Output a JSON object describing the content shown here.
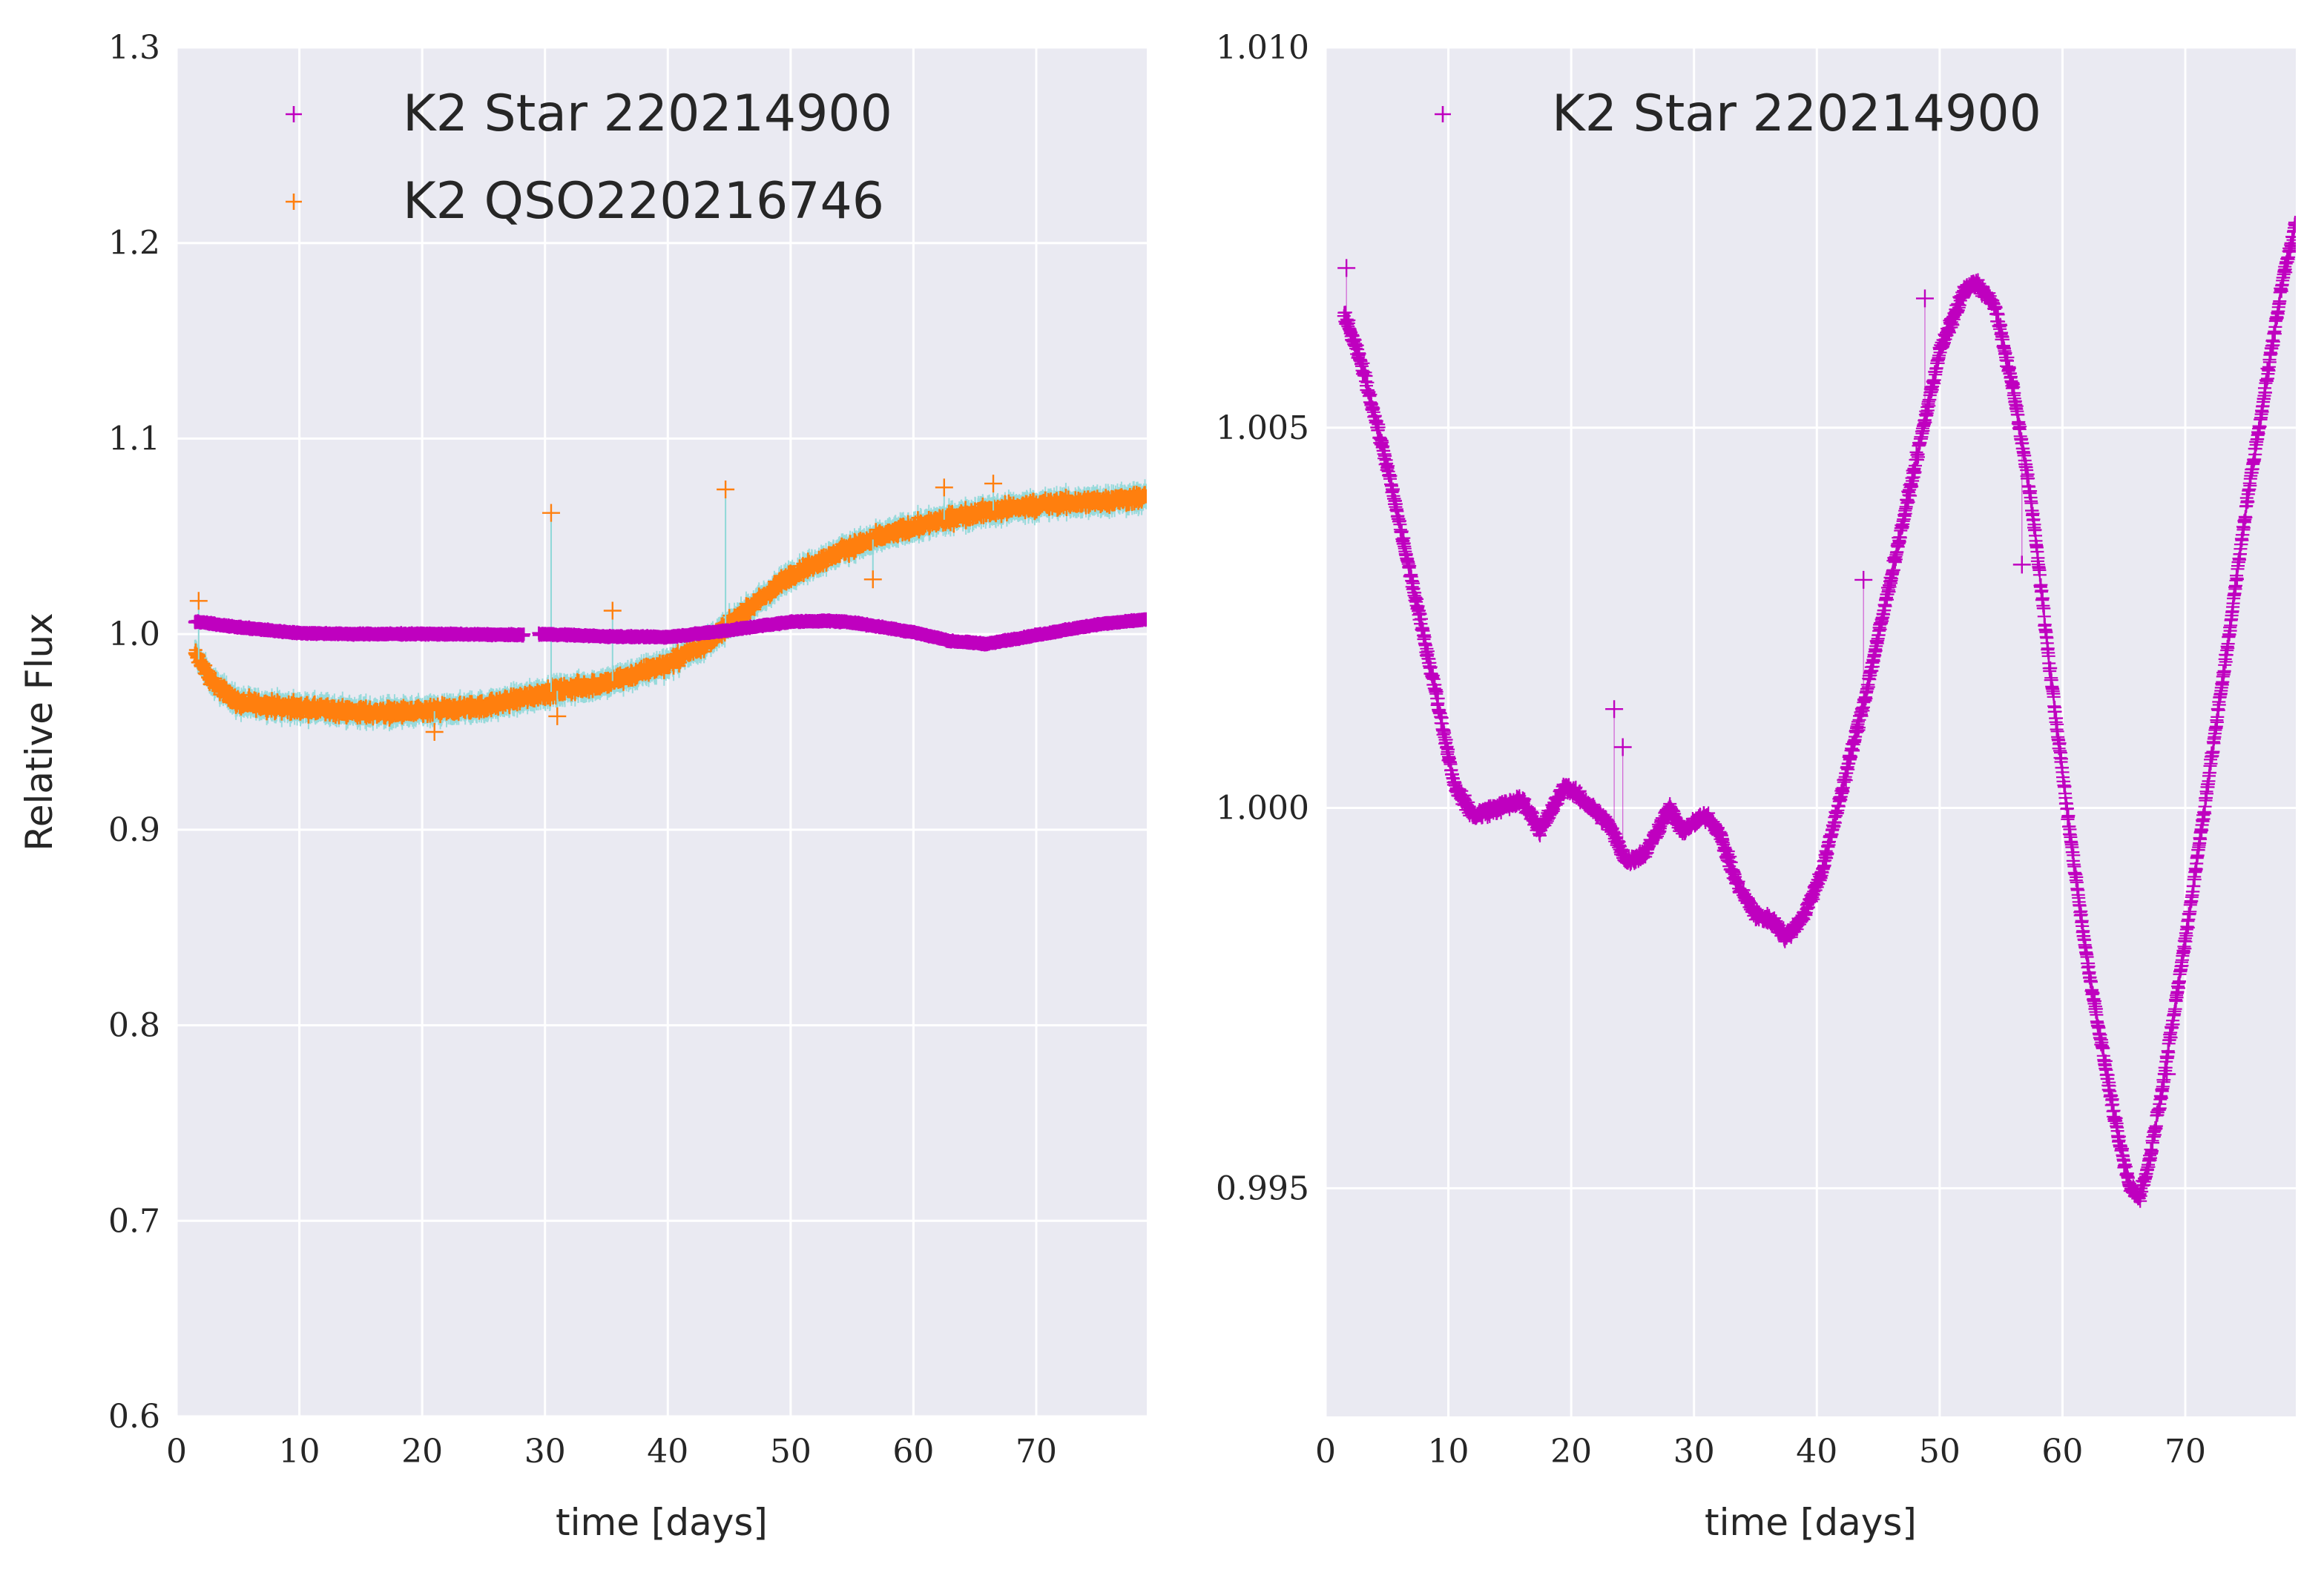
{
  "chart_data": [
    {
      "type": "scatter",
      "panel": "left",
      "xlabel": "time [days]",
      "ylabel": "Relative Flux",
      "xlim": [
        0,
        79
      ],
      "ylim": [
        0.6,
        1.3
      ],
      "xticks": [
        "0",
        "10",
        "20",
        "30",
        "40",
        "50",
        "60",
        "70"
      ],
      "yticks": [
        "0.6",
        "0.7",
        "0.8",
        "0.9",
        "1.0",
        "1.1",
        "1.2",
        "1.3"
      ],
      "grid": true,
      "legend_position": "top-left",
      "series": [
        {
          "name": "K2 Star 220214900",
          "color": "#bf00bf",
          "marker": "+",
          "gaps": [
            [
              28.3,
              29.5
            ]
          ],
          "x": [
            1.5,
            5,
            10,
            15,
            20,
            25,
            28,
            30,
            35,
            40,
            45,
            50,
            53,
            55,
            60,
            63,
            66,
            70,
            75,
            79
          ],
          "y": [
            1.0065,
            1.0035,
            1.0005,
            1.0,
            1.0001,
            0.9998,
            0.9996,
            1.0,
            0.9988,
            0.9985,
            1.002,
            1.0063,
            1.0068,
            1.006,
            1.001,
            0.9965,
            0.995,
            0.9995,
            1.005,
            1.0075
          ]
        },
        {
          "name": "K2 QSO220216746",
          "color": "#ff7f0e",
          "error_color": "#8fd8d8",
          "marker": "+",
          "x": [
            1.5,
            3,
            5,
            10,
            15,
            20,
            25,
            30,
            35,
            40,
            43,
            45,
            48,
            50,
            55,
            60,
            65,
            70,
            75,
            79
          ],
          "y": [
            0.99,
            0.975,
            0.965,
            0.962,
            0.96,
            0.96,
            0.963,
            0.97,
            0.975,
            0.985,
            0.995,
            1.005,
            1.02,
            1.03,
            1.045,
            1.055,
            1.062,
            1.066,
            1.068,
            1.07
          ],
          "outliers": [
            {
              "x": 1.8,
              "y": 1.017
            },
            {
              "x": 30.5,
              "y": 1.062
            },
            {
              "x": 35.5,
              "y": 1.012
            },
            {
              "x": 44.7,
              "y": 1.074
            },
            {
              "x": 62.5,
              "y": 1.075
            },
            {
              "x": 66.5,
              "y": 1.077
            },
            {
              "x": 21,
              "y": 0.95
            },
            {
              "x": 31,
              "y": 0.958
            },
            {
              "x": 56.7,
              "y": 1.028
            }
          ]
        }
      ]
    },
    {
      "type": "scatter",
      "panel": "right",
      "xlabel": "time [days]",
      "ylabel": "",
      "xlim": [
        0,
        79
      ],
      "ylim": [
        0.992,
        1.01
      ],
      "xticks": [
        "0",
        "10",
        "20",
        "30",
        "40",
        "50",
        "60",
        "70"
      ],
      "yticks": [
        "0.995",
        "1.000",
        "1.005",
        "1.010"
      ],
      "grid": true,
      "legend_position": "top-left",
      "series": [
        {
          "name": "K2 Star 220214900",
          "color": "#bf00bf",
          "marker": "+",
          "x": [
            1.5,
            3,
            5,
            7,
            9,
            10.5,
            12,
            14,
            16,
            17.5,
            19.5,
            21,
            23,
            24.5,
            26,
            28,
            29,
            31,
            32,
            33.5,
            35,
            36.5,
            37.5,
            39,
            40.5,
            42,
            44,
            46,
            48,
            50,
            52,
            53,
            54.5,
            56,
            57.5,
            59,
            60.5,
            62,
            63.5,
            64.5,
            65.5,
            66.3,
            67,
            68,
            69,
            70.5,
            72,
            73.5,
            75,
            76.5,
            78,
            79
          ],
          "y": [
            1.0065,
            1.0058,
            1.0045,
            1.003,
            1.0015,
            1.0003,
            0.9999,
            1.0,
            1.0001,
            0.9997,
            1.0003,
            1.0001,
            0.9998,
            0.9993,
            0.9994,
            1.0,
            0.9997,
            0.9999,
            0.9997,
            0.999,
            0.9986,
            0.9985,
            0.9983,
            0.9986,
            0.9992,
            1.0002,
            1.0015,
            1.003,
            1.0045,
            1.006,
            1.0068,
            1.0069,
            1.0066,
            1.0055,
            1.004,
            1.0018,
            0.9998,
            0.998,
            0.9966,
            0.9957,
            0.995,
            0.9949,
            0.9953,
            0.9962,
            0.9972,
            0.9988,
            1.0005,
            1.0022,
            1.004,
            1.0055,
            1.007,
            1.0077
          ],
          "outliers": [
            {
              "x": 1.7,
              "y": 1.0071
            },
            {
              "x": 23.5,
              "y": 1.0013
            },
            {
              "x": 24.2,
              "y": 1.0008
            },
            {
              "x": 43.8,
              "y": 1.003
            },
            {
              "x": 48.8,
              "y": 1.0067
            },
            {
              "x": 56.7,
              "y": 1.0032
            },
            {
              "x": 68.5,
              "y": 0.9965
            }
          ]
        }
      ]
    }
  ]
}
